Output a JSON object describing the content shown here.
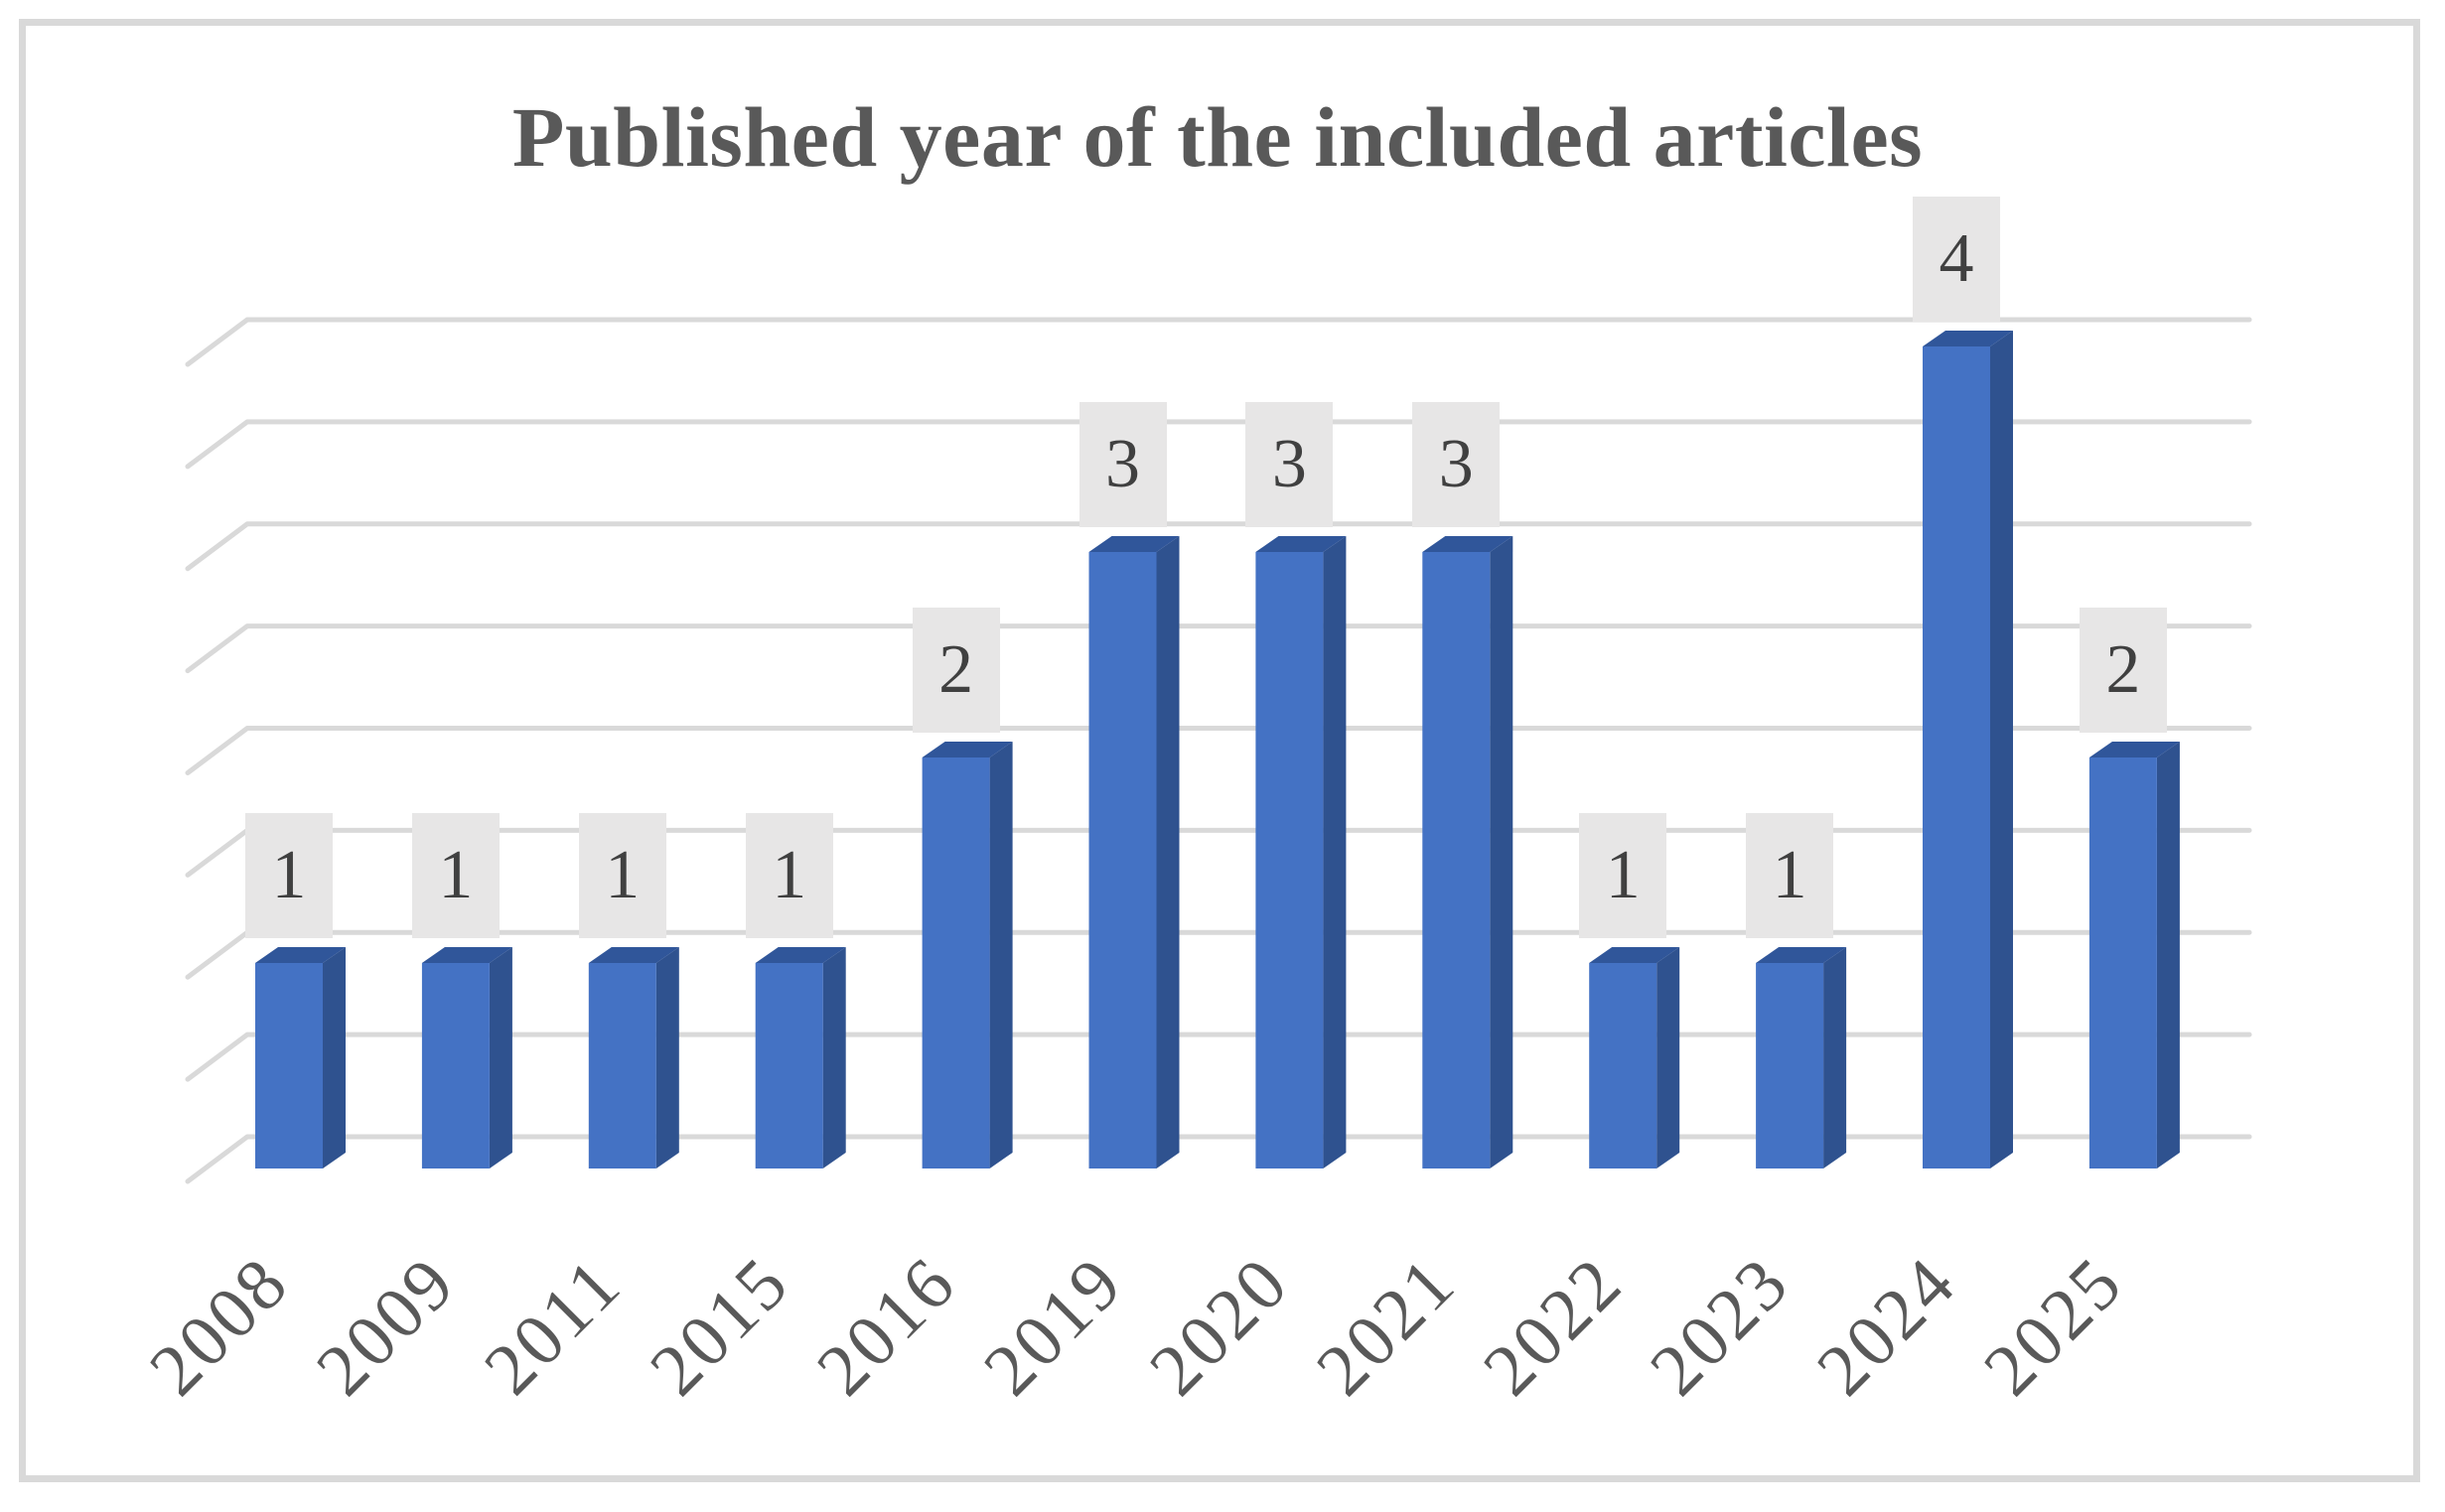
{
  "chart_data": {
    "type": "bar",
    "subtype": "3d-column",
    "title": "Published year of the included articles",
    "xlabel": "",
    "ylabel": "",
    "categories": [
      "2008",
      "2009",
      "2011",
      "2015",
      "2016",
      "2019",
      "2020",
      "2021",
      "2022",
      "2023",
      "2024",
      "2025"
    ],
    "values": [
      1,
      1,
      1,
      1,
      2,
      3,
      3,
      3,
      1,
      1,
      4,
      2
    ],
    "data_labels": [
      "1",
      "1",
      "1",
      "1",
      "2",
      "3",
      "3",
      "3",
      "1",
      "1",
      "4",
      "2"
    ],
    "ylim": [
      0,
      4
    ],
    "gridlines": true,
    "gridline_count": 9,
    "y_axis_tick_labels_visible": false,
    "legend": "none",
    "x_tick_rotation": -45
  },
  "colors": {
    "bar_front": "#4472C4",
    "bar_side": "#2F528F",
    "bar_top": "#30569A",
    "gridline": "#D9D9D9",
    "label_bg": "#E7E6E6",
    "label_text": "#404040",
    "axis_text": "#595959",
    "title_text": "#595959",
    "frame_border": "#D9D9D9"
  }
}
